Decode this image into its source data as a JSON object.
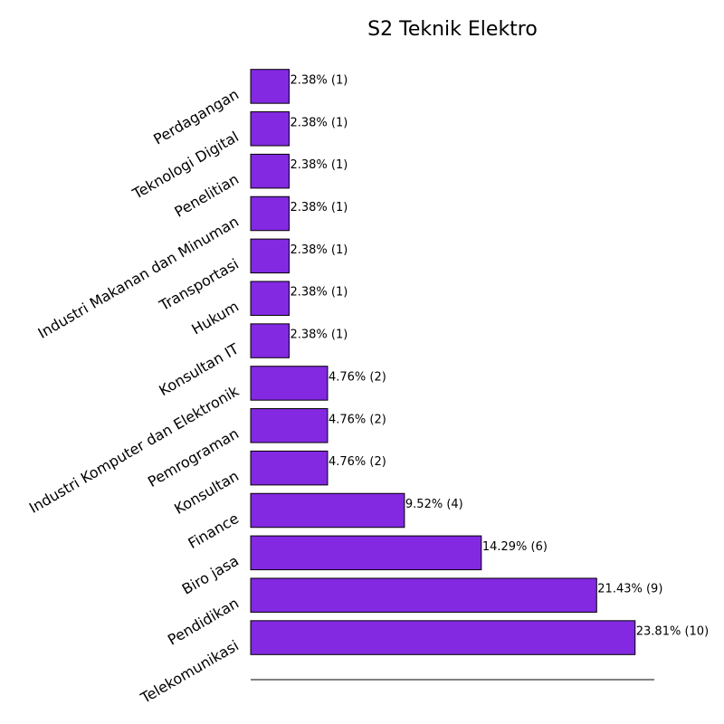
{
  "chart_data": {
    "type": "bar",
    "orientation": "horizontal",
    "title": "S2 Teknik Elektro",
    "xlabel": "",
    "ylabel": "",
    "categories": [
      "Telekomunikasi",
      "Pendidikan",
      "Biro jasa",
      "Finance",
      "Konsultan",
      "Pemrograman",
      "Industri Komputer dan Elektronik",
      "Konsultan IT",
      "Hukum",
      "Transportasi",
      "Industri Makanan dan Minuman",
      "Penelitian",
      "Teknologi Digital",
      "Perdagangan"
    ],
    "values": [
      10,
      9,
      6,
      4,
      2,
      2,
      2,
      1,
      1,
      1,
      1,
      1,
      1,
      1
    ],
    "data_labels": [
      "23.81% (10)",
      "21.43% (9)",
      "14.29% (6)",
      "9.52% (4)",
      "4.76% (2)",
      "4.76% (2)",
      "4.76% (2)",
      "2.38% (1)",
      "2.38% (1)",
      "2.38% (1)",
      "2.38% (1)",
      "2.38% (1)",
      "2.38% (1)",
      "2.38% (1)"
    ],
    "xlim": [
      0,
      10.5
    ],
    "bar_color": "#8229E1",
    "edge_color": "#000000",
    "grid": false,
    "legend": "none",
    "x_ticks_visible": false,
    "y_tick_label_rotation_deg": 30
  }
}
